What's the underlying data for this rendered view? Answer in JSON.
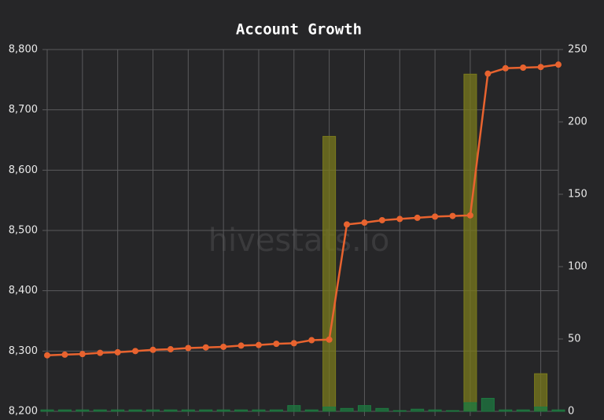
{
  "chart_data": {
    "type": "combo",
    "title": "Account Growth",
    "watermark": "hivestats.io",
    "series": [
      {
        "type": "bar",
        "axis": "y2",
        "color": "#7a7a1c",
        "values": [
          0,
          0,
          0,
          0,
          0,
          0,
          0,
          0,
          0,
          0,
          0,
          0,
          0,
          0,
          0,
          0,
          190,
          0,
          0,
          0,
          0,
          0,
          0,
          0,
          233,
          0,
          0,
          0,
          26,
          0
        ]
      },
      {
        "type": "bar",
        "axis": "y2",
        "color": "#1e7a40",
        "values": [
          1,
          1,
          1,
          1,
          1,
          1,
          1,
          1,
          1,
          1,
          1,
          1,
          1,
          1,
          4,
          1,
          3,
          2,
          4,
          2,
          0.5,
          1.5,
          1,
          0.5,
          6,
          9,
          1,
          1,
          3,
          1
        ]
      },
      {
        "type": "line",
        "axis": "y",
        "color": "#e8632f",
        "values": [
          8293,
          8294,
          8295,
          8297,
          8298,
          8300,
          8302,
          8303,
          8305,
          8306,
          8307,
          8309,
          8310,
          8312,
          8313,
          8318,
          8319,
          8510,
          8513,
          8517,
          8519,
          8521,
          8523,
          8524,
          8525,
          8760,
          8769,
          8770,
          8771,
          8775
        ]
      }
    ],
    "ylim": [
      8200,
      8800
    ],
    "yticks": [
      {
        "value": 8200,
        "label": "8,200"
      },
      {
        "value": 8300,
        "label": "8,300"
      },
      {
        "value": 8400,
        "label": "8,400"
      },
      {
        "value": 8500,
        "label": "8,500"
      },
      {
        "value": 8600,
        "label": "8,600"
      },
      {
        "value": 8700,
        "label": "8,700"
      },
      {
        "value": 8800,
        "label": "8,800"
      }
    ],
    "y2lim": [
      0,
      250
    ],
    "y2ticks": [
      0,
      50,
      100,
      150,
      200,
      250
    ],
    "grid": true
  }
}
